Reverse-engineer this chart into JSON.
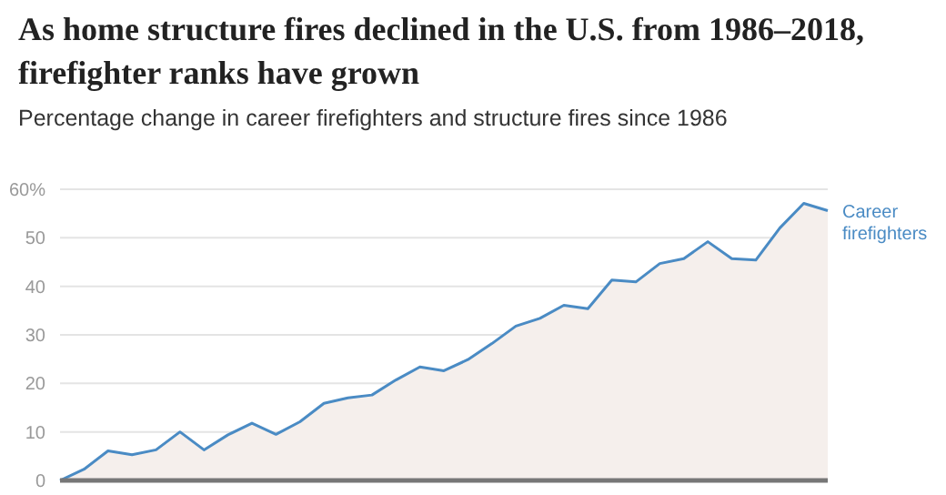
{
  "chart_data": {
    "type": "area",
    "title": "As home structure fires declined in the U.S. from 1986–2018, firefighter ranks have grown",
    "subtitle": "Percentage change in career firefighters and structure fires since 1986",
    "categories": [
      null,
      null,
      null,
      null,
      null,
      null,
      null,
      null,
      null,
      null,
      null,
      null,
      null,
      null,
      null,
      null,
      null,
      null,
      null,
      null,
      null,
      null,
      null,
      null,
      null,
      null,
      null,
      null,
      null,
      null,
      null,
      null,
      null
    ],
    "series": [
      {
        "name": "Career firefighters",
        "color": "#4a8bc4",
        "values": [
          0,
          2.3,
          6.1,
          5.3,
          6.3,
          10.0,
          6.3,
          9.4,
          11.8,
          9.5,
          12.1,
          15.9,
          17.0,
          17.6,
          20.7,
          23.4,
          22.6,
          24.9,
          28.2,
          31.8,
          33.4,
          36.1,
          35.4,
          41.3,
          40.9,
          44.7,
          45.7,
          49.2,
          45.7,
          45.4,
          52.0,
          57.1,
          55.6
        ]
      }
    ],
    "ylim": [
      0,
      60
    ],
    "yticks": [
      0,
      10,
      20,
      30,
      40,
      50,
      {
        "value": 60,
        "label": "60%"
      }
    ],
    "grid": "y",
    "tick_labels": "y",
    "legend": false
  }
}
